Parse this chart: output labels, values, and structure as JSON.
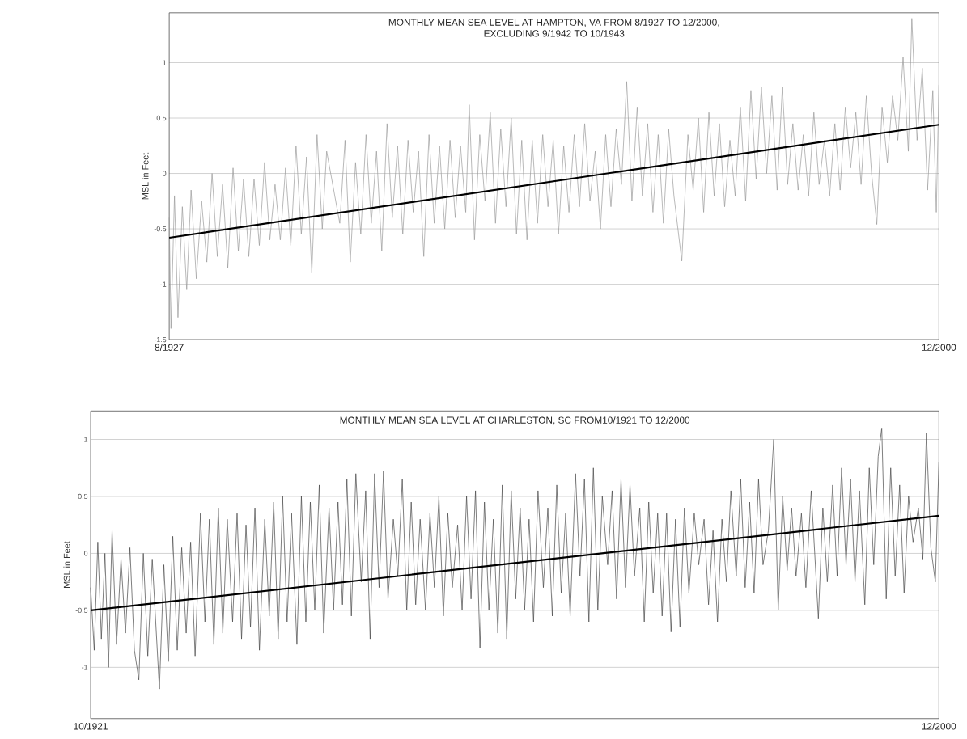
{
  "chart_data": [
    {
      "type": "line",
      "title": "MONTHLY MEAN SEA LEVEL AT HAMPTON, VA FROM 8/1927 TO 12/2000,",
      "subtitle": "EXCLUDING 9/1942 TO 10/1943",
      "ylabel": "MSL in Feet",
      "xlim": [
        "1927-08",
        "2000-12"
      ],
      "xticks": [
        {
          "value": "1927-08",
          "label": "8/1927"
        },
        {
          "value": "2000-12",
          "label": "12/2000"
        }
      ],
      "ylim": [
        -1.5,
        1.45
      ],
      "yticks": [
        -1.5,
        -1,
        -0.5,
        0,
        0.5,
        1
      ],
      "grid": "y",
      "series": [
        {
          "color": "#999999",
          "x": [
            "1927-08",
            "1927-10",
            "1928-02",
            "1928-06",
            "1928-11",
            "1929-04",
            "1929-09",
            "1930-03",
            "1930-09",
            "1931-03",
            "1931-09",
            "1932-03",
            "1932-09",
            "1933-03",
            "1933-09",
            "1934-03",
            "1934-09",
            "1935-03",
            "1935-09",
            "1936-03",
            "1936-09",
            "1937-03",
            "1937-09",
            "1938-03",
            "1938-09",
            "1939-03",
            "1939-09",
            "1940-03",
            "1940-09",
            "1941-03",
            "1941-09",
            "1942-03",
            "1942-08",
            "1943-11",
            "1944-05",
            "1944-11",
            "1945-05",
            "1945-11",
            "1946-05",
            "1946-11",
            "1947-05",
            "1947-11",
            "1948-05",
            "1948-11",
            "1949-05",
            "1949-11",
            "1950-05",
            "1950-11",
            "1951-05",
            "1951-11",
            "1952-05",
            "1952-11",
            "1953-05",
            "1953-11",
            "1954-05",
            "1954-11",
            "1955-05",
            "1955-11",
            "1956-03",
            "1956-09",
            "1957-03",
            "1957-09",
            "1958-03",
            "1958-09",
            "1959-03",
            "1959-09",
            "1960-03",
            "1960-09",
            "1961-03",
            "1961-09",
            "1962-03",
            "1962-09",
            "1963-03",
            "1963-09",
            "1964-03",
            "1964-09",
            "1965-03",
            "1965-09",
            "1966-03",
            "1966-09",
            "1967-03",
            "1967-09",
            "1968-03",
            "1968-09",
            "1969-03",
            "1969-09",
            "1970-03",
            "1970-09",
            "1971-03",
            "1971-09",
            "1972-03",
            "1972-09",
            "1973-03",
            "1973-09",
            "1974-03",
            "1974-09",
            "1975-03",
            "1975-09",
            "1976-06",
            "1977-01",
            "1977-07",
            "1978-01",
            "1978-07",
            "1979-01",
            "1979-07",
            "1980-01",
            "1980-07",
            "1981-01",
            "1981-07",
            "1982-01",
            "1982-07",
            "1983-01",
            "1983-07",
            "1984-01",
            "1984-07",
            "1985-01",
            "1985-07",
            "1986-01",
            "1986-07",
            "1987-01",
            "1987-07",
            "1988-01",
            "1988-07",
            "1989-01",
            "1989-07",
            "1990-01",
            "1990-07",
            "1991-01",
            "1991-07",
            "1992-01",
            "1992-07",
            "1993-01",
            "1993-07",
            "1994-01",
            "1994-07",
            "1995-01",
            "1995-07",
            "1996-01",
            "1996-07",
            "1997-01",
            "1997-07",
            "1998-01",
            "1998-05",
            "1998-11",
            "1999-05",
            "1999-11",
            "2000-05",
            "2000-09",
            "2000-12"
          ],
          "values": [
            -0.4,
            -1.4,
            -0.2,
            -1.3,
            -0.3,
            -1.05,
            -0.15,
            -0.95,
            -0.25,
            -0.8,
            0.0,
            -0.75,
            -0.1,
            -0.85,
            0.05,
            -0.7,
            -0.05,
            -0.75,
            -0.05,
            -0.65,
            0.1,
            -0.6,
            -0.1,
            -0.6,
            0.05,
            -0.65,
            0.25,
            -0.55,
            0.15,
            -0.9,
            0.35,
            -0.5,
            0.2,
            -0.45,
            0.3,
            -0.8,
            0.1,
            -0.55,
            0.35,
            -0.45,
            0.2,
            -0.7,
            0.45,
            -0.4,
            0.25,
            -0.55,
            0.3,
            -0.35,
            0.2,
            -0.75,
            0.35,
            -0.45,
            0.25,
            -0.5,
            0.3,
            -0.4,
            0.25,
            -0.35,
            0.62,
            -0.6,
            0.35,
            -0.25,
            0.55,
            -0.45,
            0.4,
            -0.3,
            0.5,
            -0.55,
            0.3,
            -0.6,
            0.3,
            -0.45,
            0.35,
            -0.3,
            0.3,
            -0.55,
            0.25,
            -0.35,
            0.35,
            -0.3,
            0.45,
            -0.25,
            0.2,
            -0.5,
            0.35,
            -0.3,
            0.4,
            -0.1,
            0.83,
            -0.25,
            0.6,
            -0.2,
            0.45,
            -0.35,
            0.35,
            -0.45,
            0.4,
            -0.2,
            -0.79,
            0.35,
            -0.15,
            0.5,
            -0.35,
            0.55,
            -0.2,
            0.45,
            -0.3,
            0.3,
            -0.2,
            0.6,
            -0.25,
            0.75,
            -0.05,
            0.78,
            0.0,
            0.7,
            -0.15,
            0.78,
            -0.1,
            0.45,
            -0.15,
            0.35,
            -0.2,
            0.55,
            -0.1,
            0.3,
            -0.2,
            0.45,
            -0.15,
            0.6,
            0.05,
            0.55,
            -0.1,
            0.7,
            0.0,
            -0.46,
            0.6,
            0.1,
            0.7,
            0.3,
            1.05,
            0.2,
            1.4,
            0.3,
            0.95,
            -0.15,
            0.75,
            -0.35,
            0.8
          ]
        },
        {
          "color": "#000000",
          "x": [
            "1927-08",
            "2000-12"
          ],
          "values": [
            -0.58,
            0.44
          ]
        }
      ]
    },
    {
      "type": "line",
      "title": "MONTHLY MEAN SEA LEVEL AT CHARLESTON, SC FROM10/1921 TO 12/2000",
      "ylabel": "MSL in Feet",
      "xlim": [
        "1921-10",
        "2000-12"
      ],
      "xticks": [
        {
          "value": "1921-10",
          "label": "10/1921"
        },
        {
          "value": "2000-12",
          "label": "12/2000"
        }
      ],
      "ylim": [
        -1.45,
        1.25
      ],
      "yticks": [
        -1,
        -0.5,
        0,
        0.5,
        1
      ],
      "grid": "y",
      "series": [
        {
          "color": "#444444",
          "x": [
            "1921-10",
            "1922-02",
            "1922-06",
            "1922-10",
            "1923-02",
            "1923-06",
            "1923-10",
            "1924-03",
            "1924-08",
            "1925-01",
            "1925-06",
            "1925-11",
            "1926-04",
            "1926-09",
            "1927-02",
            "1927-07",
            "1928-03",
            "1928-08",
            "1929-01",
            "1929-06",
            "1929-11",
            "1930-04",
            "1930-09",
            "1931-02",
            "1931-07",
            "1932-01",
            "1932-06",
            "1932-11",
            "1933-04",
            "1933-09",
            "1934-02",
            "1934-07",
            "1935-01",
            "1935-06",
            "1935-11",
            "1936-04",
            "1936-09",
            "1937-02",
            "1937-07",
            "1938-01",
            "1938-06",
            "1938-11",
            "1939-04",
            "1939-09",
            "1940-02",
            "1940-07",
            "1941-01",
            "1941-06",
            "1941-11",
            "1942-04",
            "1942-09",
            "1943-02",
            "1943-07",
            "1944-01",
            "1944-06",
            "1944-11",
            "1945-04",
            "1945-09",
            "1946-02",
            "1946-07",
            "1947-01",
            "1947-06",
            "1947-11",
            "1948-04",
            "1948-09",
            "1949-02",
            "1949-07",
            "1950-01",
            "1950-06",
            "1950-11",
            "1951-04",
            "1951-09",
            "1952-02",
            "1952-07",
            "1953-01",
            "1953-06",
            "1953-11",
            "1954-04",
            "1954-09",
            "1955-02",
            "1955-07",
            "1956-01",
            "1956-06",
            "1956-11",
            "1957-04",
            "1957-09",
            "1958-02",
            "1958-07",
            "1958-12",
            "1959-05",
            "1959-10",
            "1960-03",
            "1960-08",
            "1961-01",
            "1961-06",
            "1961-11",
            "1962-04",
            "1962-09",
            "1963-02",
            "1963-07",
            "1964-01",
            "1964-06",
            "1964-11",
            "1965-04",
            "1965-09",
            "1966-02",
            "1966-07",
            "1967-01",
            "1967-06",
            "1967-11",
            "1968-04",
            "1968-09",
            "1969-02",
            "1969-07",
            "1970-01",
            "1970-06",
            "1970-11",
            "1971-04",
            "1971-09",
            "1972-02",
            "1972-07",
            "1973-01",
            "1973-06",
            "1973-11",
            "1974-04",
            "1974-09",
            "1975-02",
            "1975-07",
            "1975-12",
            "1976-05",
            "1976-10",
            "1977-03",
            "1977-08",
            "1978-02",
            "1978-07",
            "1979-01",
            "1979-06",
            "1979-11",
            "1980-04",
            "1980-09",
            "1981-02",
            "1981-07",
            "1982-01",
            "1982-06",
            "1982-11",
            "1983-04",
            "1983-09",
            "1984-02",
            "1984-07",
            "1985-01",
            "1985-07",
            "1985-12",
            "1986-05",
            "1986-10",
            "1987-03",
            "1987-08",
            "1988-02",
            "1988-07",
            "1989-01",
            "1989-09",
            "1990-02",
            "1990-07",
            "1991-01",
            "1991-06",
            "1991-11",
            "1992-04",
            "1992-09",
            "1993-02",
            "1993-07",
            "1994-01",
            "1994-06",
            "1994-11",
            "1995-04",
            "1995-08",
            "1996-01",
            "1996-06",
            "1996-11",
            "1997-04",
            "1997-09",
            "1998-02",
            "1998-07",
            "1999-01",
            "1999-06",
            "1999-10",
            "2000-03",
            "2000-08",
            "2000-12"
          ],
          "values": [
            -0.3,
            -0.85,
            0.1,
            -0.75,
            0.0,
            -1.0,
            0.2,
            -0.8,
            -0.05,
            -0.7,
            0.05,
            -0.85,
            -1.11,
            0.0,
            -0.9,
            -0.05,
            -1.19,
            -0.1,
            -0.95,
            0.15,
            -0.85,
            0.05,
            -0.7,
            0.1,
            -0.9,
            0.35,
            -0.6,
            0.3,
            -0.8,
            0.4,
            -0.7,
            0.3,
            -0.6,
            0.35,
            -0.75,
            0.25,
            -0.65,
            0.4,
            -0.85,
            0.3,
            -0.55,
            0.45,
            -0.75,
            0.5,
            -0.6,
            0.35,
            -0.8,
            0.5,
            -0.6,
            0.45,
            -0.5,
            0.6,
            -0.7,
            0.4,
            -0.5,
            0.45,
            -0.45,
            0.65,
            -0.55,
            0.7,
            -0.25,
            0.55,
            -0.75,
            0.7,
            -0.3,
            0.72,
            -0.4,
            0.3,
            -0.2,
            0.65,
            -0.5,
            0.45,
            -0.45,
            0.3,
            -0.5,
            0.35,
            -0.3,
            0.5,
            -0.55,
            0.35,
            -0.3,
            0.25,
            -0.5,
            0.5,
            -0.4,
            0.55,
            -0.83,
            0.45,
            -0.5,
            0.3,
            -0.7,
            0.6,
            -0.75,
            0.55,
            -0.4,
            0.4,
            -0.5,
            0.3,
            -0.6,
            0.55,
            -0.3,
            0.4,
            -0.55,
            0.6,
            -0.35,
            0.35,
            -0.55,
            0.7,
            -0.2,
            0.65,
            -0.6,
            0.75,
            -0.5,
            0.5,
            -0.1,
            0.55,
            -0.4,
            0.65,
            -0.3,
            0.6,
            -0.2,
            0.4,
            -0.6,
            0.45,
            -0.35,
            0.35,
            -0.55,
            0.35,
            -0.69,
            0.3,
            -0.65,
            0.4,
            -0.35,
            0.35,
            -0.1,
            0.3,
            -0.45,
            0.2,
            -0.6,
            0.3,
            -0.25,
            0.55,
            -0.2,
            0.65,
            -0.3,
            0.45,
            -0.35,
            0.65,
            -0.1,
            0.2,
            1.0,
            -0.5,
            0.5,
            -0.15,
            0.4,
            -0.2,
            0.35,
            -0.3,
            0.55,
            -0.57,
            0.4,
            -0.25,
            0.6,
            -0.2,
            0.75,
            -0.1,
            0.65,
            -0.25,
            0.55,
            -0.45,
            0.75,
            -0.1,
            0.85,
            1.1,
            -0.4,
            0.75,
            -0.2,
            0.6,
            -0.35,
            0.5,
            0.1,
            0.4,
            -0.05,
            1.06,
            0.05,
            -0.25,
            0.8
          ]
        },
        {
          "color": "#000000",
          "x": [
            "1921-10",
            "2000-12"
          ],
          "values": [
            -0.5,
            0.33
          ]
        }
      ]
    }
  ]
}
